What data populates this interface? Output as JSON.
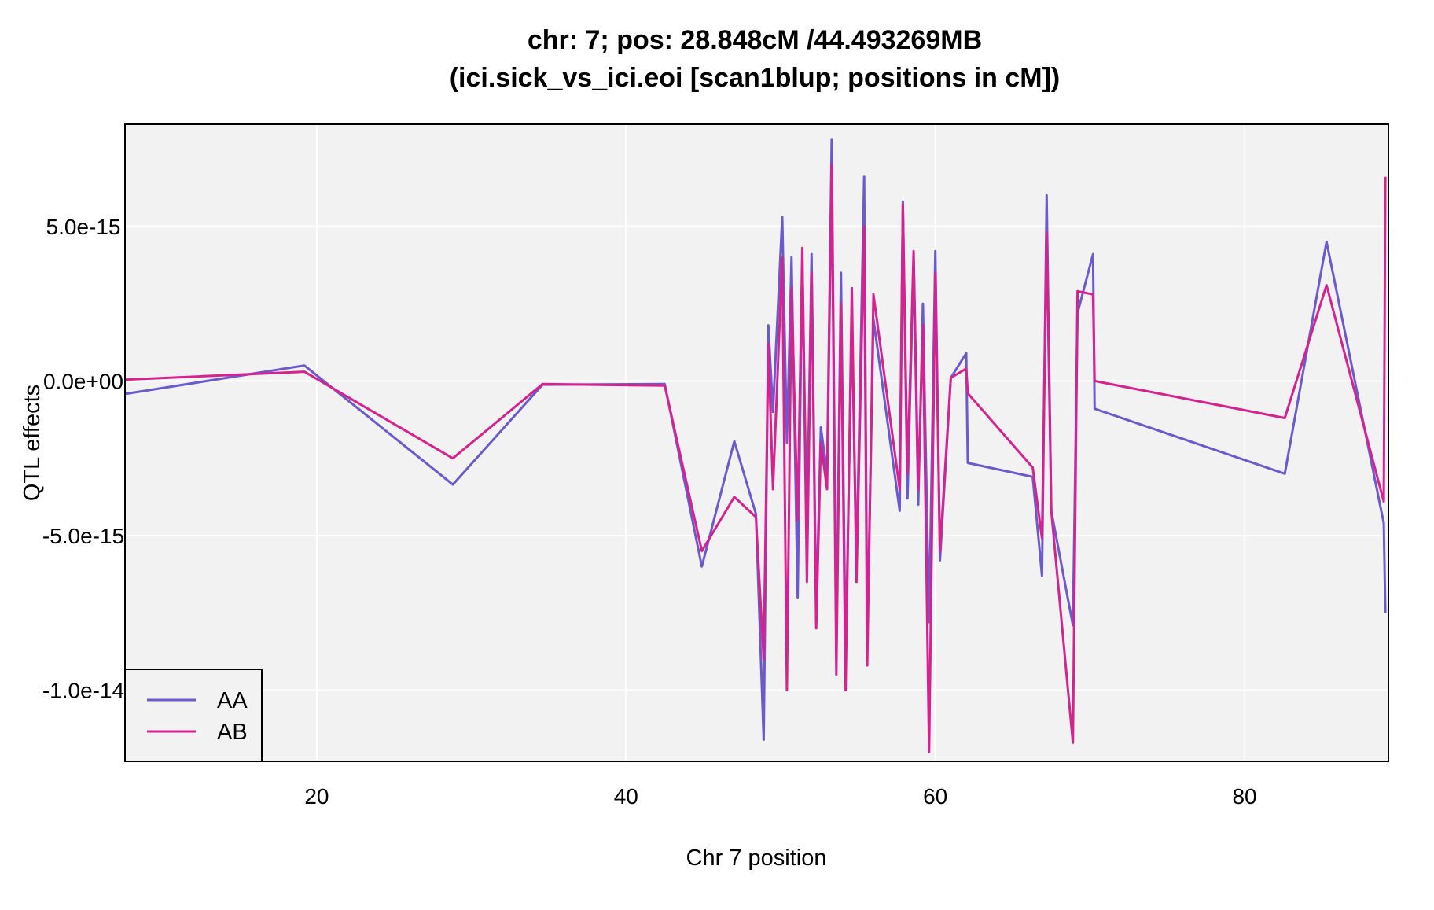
{
  "chart_data": {
    "type": "line",
    "title": [
      "chr: 7; pos: 28.848cM /44.493269MB",
      "(ici.sick_vs_ici.eoi [scan1blup; positions in cM])"
    ],
    "xlabel": "Chr 7 position",
    "ylabel": "QTL effects",
    "xlim": [
      7.6,
      89.3
    ],
    "ylim": [
      -1.23e-14,
      8.3e-15
    ],
    "x_ticks": [
      {
        "value": 20,
        "label": "20"
      },
      {
        "value": 40,
        "label": "40"
      },
      {
        "value": 60,
        "label": "60"
      },
      {
        "value": 80,
        "label": "80"
      }
    ],
    "y_ticks": [
      {
        "value": 5e-15,
        "label": "5.0e-15"
      },
      {
        "value": 0,
        "label": "0.0e+00"
      },
      {
        "value": -5e-15,
        "label": "-5.0e-15"
      },
      {
        "value": -1e-14,
        "label": "-1.0e-14"
      }
    ],
    "grid": true,
    "legend_position": "bottom-left",
    "background_color": "#f2f2f2",
    "series": [
      {
        "name": "AA",
        "color": "#6a5acd",
        "x": [
          7.6,
          19.2,
          28.8,
          34.6,
          42.5,
          44.9,
          47.0,
          48.4,
          48.9,
          49.2,
          49.5,
          50.1,
          50.4,
          50.7,
          51.1,
          51.4,
          51.7,
          52.0,
          52.3,
          52.6,
          53.0,
          53.3,
          53.6,
          53.9,
          54.2,
          54.6,
          54.9,
          55.4,
          55.6,
          56.0,
          57.7,
          57.9,
          58.2,
          58.6,
          58.9,
          59.2,
          59.6,
          60.0,
          60.3,
          61.0,
          62.0,
          62.1,
          66.3,
          66.9,
          67.2,
          67.5,
          68.9,
          69.2,
          70.2,
          70.3,
          82.6,
          85.3,
          89.0,
          89.1
        ],
        "y": [
          -4.2e-16,
          5e-16,
          -3.35e-15,
          -1.2e-16,
          -1e-16,
          -6e-15,
          -1.95e-15,
          -4.3e-15,
          -1.16e-14,
          1.8e-15,
          -1e-15,
          5.3e-15,
          -2e-15,
          4e-15,
          -7e-15,
          3.9e-15,
          -5e-15,
          4.1e-15,
          -7.5e-15,
          -1.5e-15,
          -3e-15,
          7.8e-15,
          -8.5e-15,
          3.5e-15,
          -9e-15,
          2e-15,
          -6e-15,
          6.6e-15,
          -8.5e-15,
          2e-15,
          -4.2e-15,
          5.8e-15,
          -3.8e-15,
          3.9e-15,
          -4e-15,
          2.5e-15,
          -7.8e-15,
          4.2e-15,
          -5.8e-15,
          1e-16,
          9e-16,
          -2.65e-15,
          -3.1e-15,
          -6.3e-15,
          6e-15,
          -4.2e-15,
          -7.9e-15,
          2.2e-15,
          4.1e-15,
          -9e-16,
          -3e-15,
          4.5e-15,
          -4.6e-15,
          -7.5e-15
        ]
      },
      {
        "name": "AB",
        "color": "#d6228f",
        "x": [
          7.6,
          19.2,
          28.8,
          34.6,
          42.5,
          44.9,
          47.0,
          48.4,
          48.9,
          49.2,
          49.5,
          50.1,
          50.4,
          50.7,
          51.1,
          51.4,
          51.7,
          52.0,
          52.3,
          52.6,
          53.0,
          53.3,
          53.6,
          53.9,
          54.2,
          54.6,
          54.9,
          55.4,
          55.6,
          56.0,
          57.7,
          57.9,
          58.2,
          58.6,
          58.9,
          59.2,
          59.6,
          60.0,
          60.3,
          61.0,
          62.0,
          62.1,
          66.3,
          66.9,
          67.2,
          67.5,
          68.9,
          69.2,
          70.2,
          70.3,
          82.6,
          85.3,
          89.0,
          89.1
        ],
        "y": [
          4e-17,
          3e-16,
          -2.5e-15,
          -1e-16,
          -1.5e-16,
          -5.5e-15,
          -3.75e-15,
          -4.4e-15,
          -9e-15,
          1.2e-15,
          -3.5e-15,
          4e-15,
          -1e-14,
          3e-15,
          -4.5e-15,
          4.3e-15,
          -6.5e-15,
          3.5e-15,
          -8e-15,
          -2e-15,
          -3.5e-15,
          7e-15,
          -9.5e-15,
          2.5e-15,
          -1e-14,
          3e-15,
          -6.5e-15,
          5e-15,
          -9.2e-15,
          2.8e-15,
          -3.5e-15,
          5.7e-15,
          -3e-15,
          4.2e-15,
          -3.5e-15,
          1.8e-15,
          -1.2e-14,
          3.5e-15,
          -5.5e-15,
          1e-16,
          4e-16,
          -4e-16,
          -2.8e-15,
          -5.1e-15,
          4.8e-15,
          -4.2e-15,
          -1.17e-14,
          2.9e-15,
          2.8e-15,
          0,
          -1.2e-15,
          3.1e-15,
          -3.9e-15,
          6.6e-15
        ]
      }
    ]
  }
}
